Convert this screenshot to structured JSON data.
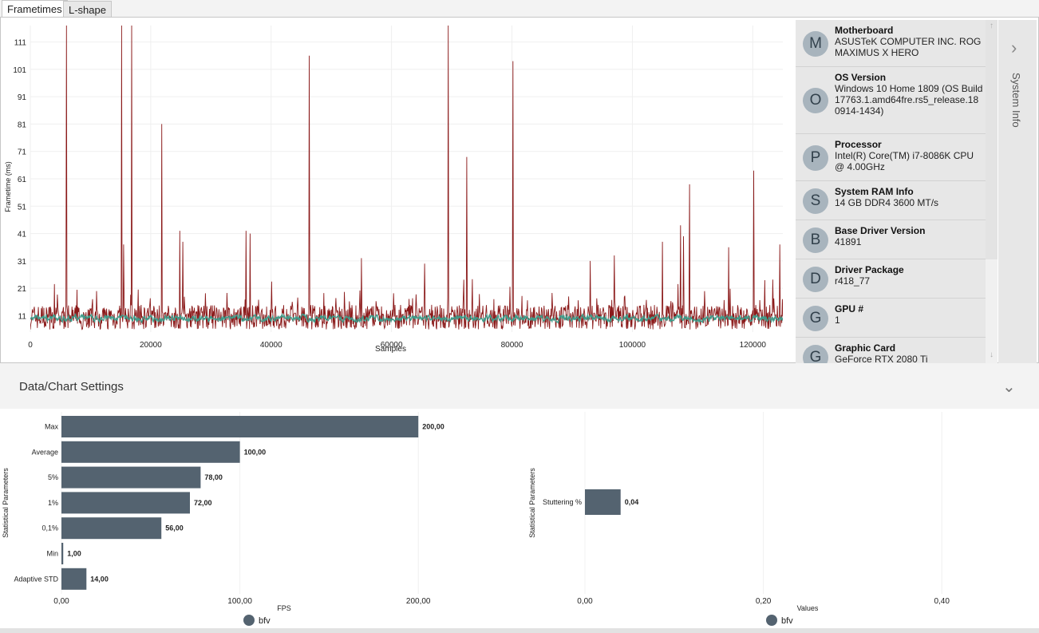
{
  "tabs": [
    {
      "label": "Frametimes",
      "active": true
    },
    {
      "label": "L-shape",
      "active": false
    }
  ],
  "frametime_chart": {
    "chart_data": {
      "type": "line",
      "xlabel": "Samples",
      "ylabel": "Frametime (ms)",
      "xlim": [
        0,
        125000
      ],
      "ylim": [
        5,
        117
      ],
      "x_ticks": [
        "0",
        "20000",
        "40000",
        "60000",
        "80000",
        "100000",
        "120000"
      ],
      "y_ticks": [
        "11",
        "21",
        "31",
        "41",
        "51",
        "61",
        "71",
        "81",
        "91",
        "101",
        "111"
      ],
      "grid": true,
      "series": [
        {
          "color": "#8b1a1a",
          "baseline": 10,
          "spikes": [
            [
              6000,
              117
            ],
            [
              15200,
              117
            ],
            [
              15500,
              37
            ],
            [
              16800,
              117
            ],
            [
              21800,
              81
            ],
            [
              24800,
              42
            ],
            [
              25300,
              38
            ],
            [
              35800,
              42
            ],
            [
              36500,
              41
            ],
            [
              46300,
              106
            ],
            [
              55000,
              32
            ],
            [
              65500,
              30
            ],
            [
              69400,
              117
            ],
            [
              72500,
              69
            ],
            [
              80200,
              104
            ],
            [
              93000,
              31
            ],
            [
              97000,
              33
            ],
            [
              105000,
              38
            ],
            [
              108000,
              44
            ],
            [
              108500,
              40
            ],
            [
              109500,
              59
            ],
            [
              116000,
              36
            ],
            [
              120200,
              64
            ],
            [
              124500,
              37
            ]
          ]
        },
        {
          "color": "#3f9c8a",
          "baseline": 10
        }
      ]
    }
  },
  "system_info": {
    "side_label": "System Info",
    "items": [
      {
        "avatar": "M",
        "title": "Motherboard",
        "value": "ASUSTeK COMPUTER INC. ROG MAXIMUS X HERO"
      },
      {
        "avatar": "O",
        "title": "OS Version",
        "value": "Windows 10 Home 1809 (OS Build 17763.1.amd64fre.rs5_release.180914-1434)"
      },
      {
        "avatar": "P",
        "title": "Processor",
        "value": "Intel(R) Core(TM) i7-8086K CPU @ 4.00GHz"
      },
      {
        "avatar": "S",
        "title": "System RAM Info",
        "value": "14 GB DDR4 3600 MT/s"
      },
      {
        "avatar": "B",
        "title": "Base Driver Version",
        "value": "41891"
      },
      {
        "avatar": "D",
        "title": "Driver Package",
        "value": "r418_77"
      },
      {
        "avatar": "G",
        "title": "GPU #",
        "value": "1"
      },
      {
        "avatar": "G",
        "title": "Graphic Card",
        "value": "GeForce RTX 2080 Ti"
      }
    ]
  },
  "settings": {
    "title": "Data/Chart Settings"
  },
  "stats": {
    "chart_data": [
      {
        "type": "bar",
        "orientation": "horizontal",
        "ylabel": "Statistical Parameters",
        "xlabel": "FPS",
        "categories": [
          "Max",
          "Average",
          "5%",
          "1%",
          "0,1%",
          "Min",
          "Adaptive STD"
        ],
        "values": [
          200,
          100,
          78,
          72,
          56,
          1,
          14
        ],
        "value_labels": [
          "200,00",
          "100,00",
          "78,00",
          "72,00",
          "56,00",
          "1,00",
          "14,00"
        ],
        "xlim": [
          0,
          250
        ],
        "x_ticks": [
          "0,00",
          "100,00",
          "200,00"
        ],
        "series": [
          {
            "name": "bfv",
            "color": "#546370"
          }
        ],
        "legend": "bottom"
      },
      {
        "type": "bar",
        "orientation": "horizontal",
        "ylabel": "Statistical Parameters",
        "xlabel": "Values",
        "categories": [
          "Stuttering %"
        ],
        "values": [
          0.04
        ],
        "value_labels": [
          "0,04"
        ],
        "xlim": [
          0,
          0.5
        ],
        "x_ticks": [
          "0,00",
          "0,20",
          "0,40"
        ],
        "series": [
          {
            "name": "bfv",
            "color": "#546370"
          }
        ],
        "legend": "bottom"
      }
    ]
  }
}
